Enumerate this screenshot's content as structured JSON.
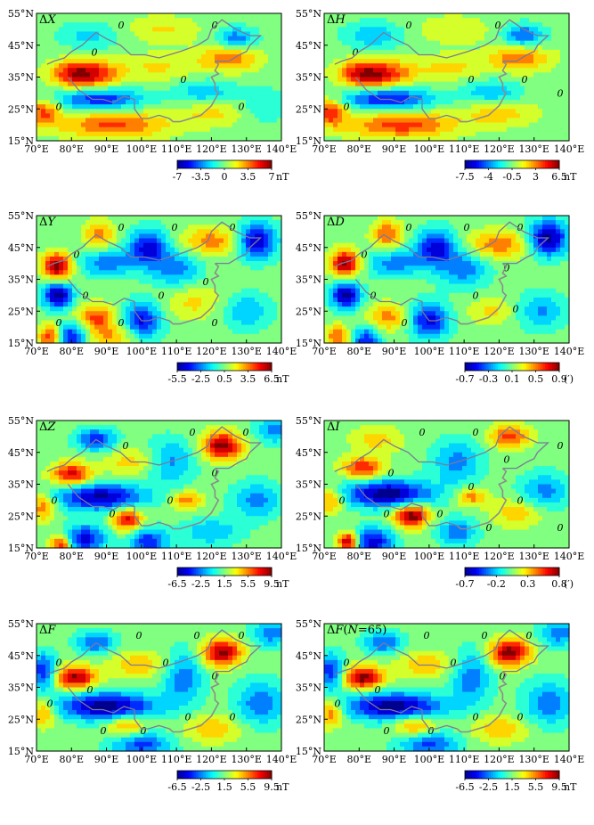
{
  "chart_data": [
    {
      "type": "heatmap",
      "title_prefix": "Δ",
      "title_var": "X",
      "title_suffix": "",
      "x_ticks": [
        "70°E",
        "80°E",
        "90°E",
        "100°E",
        "110°E",
        "120°E",
        "130°E",
        "140°E"
      ],
      "y_ticks": [
        "15°N",
        "25°N",
        "35°N",
        "45°N",
        "55°N"
      ],
      "xlim": [
        70,
        140
      ],
      "ylim": [
        15,
        55
      ],
      "colorbar": {
        "ticks": [
          "-7",
          "-3.5",
          "0",
          "3.5",
          "7"
        ],
        "unit": "nT",
        "range": [
          -7,
          7
        ]
      },
      "field": [
        {
          "x": 81,
          "y": 36,
          "amp": 1.0,
          "sx": 5,
          "sy": 3
        },
        {
          "x": 88,
          "y": 36,
          "amp": 0.6,
          "sx": 5,
          "sy": 3
        },
        {
          "x": 125,
          "y": 41,
          "amp": 0.7,
          "sx": 6,
          "sy": 3
        },
        {
          "x": 105,
          "y": 38,
          "amp": 0.35,
          "sx": 8,
          "sy": 3
        },
        {
          "x": 88,
          "y": 28,
          "amp": -0.9,
          "sx": 9,
          "sy": 2.5
        },
        {
          "x": 92,
          "y": 20,
          "amp": 0.8,
          "sx": 11,
          "sy": 3
        },
        {
          "x": 120,
          "y": 24,
          "amp": 0.4,
          "sx": 7,
          "sy": 3
        },
        {
          "x": 72,
          "y": 24,
          "amp": 0.8,
          "sx": 3,
          "sy": 3
        },
        {
          "x": 118,
          "y": 30,
          "amp": -0.5,
          "sx": 6,
          "sy": 3
        },
        {
          "x": 127,
          "y": 47,
          "amp": -0.7,
          "sx": 4,
          "sy": 2.5
        },
        {
          "x": 85,
          "y": 48,
          "amp": -0.4,
          "sx": 6,
          "sy": 3
        },
        {
          "x": 106,
          "y": 50,
          "amp": 0.35,
          "sx": 7,
          "sy": 3
        },
        {
          "x": 135,
          "y": 26,
          "amp": -0.3,
          "sx": 5,
          "sy": 4
        }
      ]
    },
    {
      "type": "heatmap",
      "title_prefix": "Δ",
      "title_var": "H",
      "title_suffix": "",
      "x_ticks": [
        "70°E",
        "80°E",
        "90°E",
        "100°E",
        "110°E",
        "120°E",
        "130°E",
        "140°E"
      ],
      "y_ticks": [
        "15°N",
        "25°N",
        "35°N",
        "45°N",
        "55°N"
      ],
      "xlim": [
        70,
        140
      ],
      "ylim": [
        15,
        55
      ],
      "colorbar": {
        "ticks": [
          "-7.5",
          "-4",
          "-0.5",
          "3",
          "6.5"
        ],
        "unit": "nT",
        "range": [
          -7.5,
          6.5
        ]
      },
      "field": [
        {
          "x": 81,
          "y": 36,
          "amp": 1.0,
          "sx": 5,
          "sy": 3
        },
        {
          "x": 89,
          "y": 36,
          "amp": 0.6,
          "sx": 5,
          "sy": 3
        },
        {
          "x": 126,
          "y": 41,
          "amp": 0.65,
          "sx": 6,
          "sy": 3
        },
        {
          "x": 106,
          "y": 38,
          "amp": 0.35,
          "sx": 8,
          "sy": 3
        },
        {
          "x": 88,
          "y": 28,
          "amp": -0.95,
          "sx": 9,
          "sy": 2.5
        },
        {
          "x": 92,
          "y": 20,
          "amp": 0.8,
          "sx": 11,
          "sy": 3
        },
        {
          "x": 120,
          "y": 24,
          "amp": 0.45,
          "sx": 7,
          "sy": 3
        },
        {
          "x": 72,
          "y": 24,
          "amp": 0.85,
          "sx": 3,
          "sy": 3
        },
        {
          "x": 118,
          "y": 30,
          "amp": -0.5,
          "sx": 6,
          "sy": 3
        },
        {
          "x": 127,
          "y": 48,
          "amp": -0.75,
          "sx": 4,
          "sy": 2.5
        },
        {
          "x": 84,
          "y": 48,
          "amp": -0.45,
          "sx": 6,
          "sy": 3
        },
        {
          "x": 107,
          "y": 50,
          "amp": 0.3,
          "sx": 7,
          "sy": 3
        }
      ]
    },
    {
      "type": "heatmap",
      "title_prefix": "Δ",
      "title_var": "Y",
      "title_suffix": "",
      "x_ticks": [
        "70°E",
        "80°E",
        "90°E",
        "100°E",
        "110°E",
        "120°E",
        "130°E",
        "140°E"
      ],
      "y_ticks": [
        "15°N",
        "25°N",
        "35°N",
        "45°N",
        "55°N"
      ],
      "xlim": [
        70,
        140
      ],
      "ylim": [
        15,
        55
      ],
      "colorbar": {
        "ticks": [
          "-5.5",
          "-2.5",
          "0.5",
          "3.5",
          "6.5"
        ],
        "unit": "nT",
        "range": [
          -5.5,
          6.5
        ]
      },
      "field": [
        {
          "x": 76,
          "y": 39,
          "amp": 1.0,
          "sx": 3,
          "sy": 3
        },
        {
          "x": 76,
          "y": 30,
          "amp": -1.0,
          "sx": 3,
          "sy": 3
        },
        {
          "x": 74,
          "y": 17,
          "amp": 0.7,
          "sx": 2.5,
          "sy": 2.5
        },
        {
          "x": 80,
          "y": 17,
          "amp": -0.8,
          "sx": 3,
          "sy": 3
        },
        {
          "x": 88,
          "y": 49,
          "amp": 0.5,
          "sx": 3,
          "sy": 3
        },
        {
          "x": 102,
          "y": 45,
          "amp": -0.8,
          "sx": 4,
          "sy": 4
        },
        {
          "x": 120,
          "y": 47,
          "amp": 0.5,
          "sx": 6,
          "sy": 3
        },
        {
          "x": 133,
          "y": 47,
          "amp": -0.9,
          "sx": 4,
          "sy": 4
        },
        {
          "x": 90,
          "y": 40,
          "amp": -0.5,
          "sx": 6,
          "sy": 3
        },
        {
          "x": 110,
          "y": 38,
          "amp": -0.5,
          "sx": 5,
          "sy": 4
        },
        {
          "x": 100,
          "y": 22,
          "amp": -0.8,
          "sx": 4,
          "sy": 4
        },
        {
          "x": 87,
          "y": 23,
          "amp": 0.6,
          "sx": 4,
          "sy": 3
        },
        {
          "x": 92,
          "y": 17,
          "amp": 0.4,
          "sx": 5,
          "sy": 3
        },
        {
          "x": 130,
          "y": 25,
          "amp": -0.4,
          "sx": 5,
          "sy": 4
        },
        {
          "x": 115,
          "y": 28,
          "amp": 0.3,
          "sx": 6,
          "sy": 4
        }
      ]
    },
    {
      "type": "heatmap",
      "title_prefix": "Δ",
      "title_var": "D",
      "title_suffix": "",
      "x_ticks": [
        "70°E",
        "80°E",
        "90°E",
        "100°E",
        "110°E",
        "120°E",
        "130°E",
        "140°E"
      ],
      "y_ticks": [
        "15°N",
        "25°N",
        "35°N",
        "45°N",
        "55°N"
      ],
      "xlim": [
        70,
        140
      ],
      "ylim": [
        15,
        55
      ],
      "colorbar": {
        "ticks": [
          "-0.7",
          "-0.3",
          "0.1",
          "0.5",
          "0.9"
        ],
        "unit": "(′)",
        "range": [
          -0.7,
          0.9
        ]
      },
      "field": [
        {
          "x": 76,
          "y": 40,
          "amp": 1.0,
          "sx": 3,
          "sy": 3
        },
        {
          "x": 76,
          "y": 30,
          "amp": -1.0,
          "sx": 3,
          "sy": 3
        },
        {
          "x": 74,
          "y": 17,
          "amp": 0.6,
          "sx": 2.5,
          "sy": 2.5
        },
        {
          "x": 82,
          "y": 16,
          "amp": -0.7,
          "sx": 3,
          "sy": 3
        },
        {
          "x": 88,
          "y": 49,
          "amp": 0.6,
          "sx": 3,
          "sy": 3
        },
        {
          "x": 102,
          "y": 45,
          "amp": -0.8,
          "sx": 4,
          "sy": 4
        },
        {
          "x": 120,
          "y": 46,
          "amp": 0.55,
          "sx": 6,
          "sy": 3
        },
        {
          "x": 134,
          "y": 48,
          "amp": -1.0,
          "sx": 4,
          "sy": 4
        },
        {
          "x": 90,
          "y": 40,
          "amp": -0.5,
          "sx": 6,
          "sy": 3
        },
        {
          "x": 110,
          "y": 38,
          "amp": -0.5,
          "sx": 5,
          "sy": 4
        },
        {
          "x": 100,
          "y": 22,
          "amp": -0.8,
          "sx": 4,
          "sy": 4
        },
        {
          "x": 88,
          "y": 23,
          "amp": 0.5,
          "sx": 4,
          "sy": 3
        },
        {
          "x": 118,
          "y": 25,
          "amp": 0.3,
          "sx": 5,
          "sy": 3
        },
        {
          "x": 132,
          "y": 25,
          "amp": -0.45,
          "sx": 5,
          "sy": 4
        }
      ]
    },
    {
      "type": "heatmap",
      "title_prefix": "Δ",
      "title_var": "Z",
      "title_suffix": "",
      "x_ticks": [
        "70°E",
        "80°E",
        "90°E",
        "100°E",
        "110°E",
        "120°E",
        "130°E",
        "140°E"
      ],
      "y_ticks": [
        "15°N",
        "25°N",
        "35°N",
        "45°N",
        "55°N"
      ],
      "xlim": [
        70,
        140
      ],
      "ylim": [
        15,
        55
      ],
      "colorbar": {
        "ticks": [
          "-6.5",
          "-2.5",
          "1.5",
          "5.5",
          "9.5"
        ],
        "unit": "nT",
        "range": [
          -6.5,
          9.5
        ]
      },
      "field": [
        {
          "x": 80,
          "y": 38,
          "amp": 0.85,
          "sx": 4,
          "sy": 2.5
        },
        {
          "x": 88,
          "y": 31,
          "amp": -0.95,
          "sx": 9,
          "sy": 3
        },
        {
          "x": 123,
          "y": 47,
          "amp": 1.0,
          "sx": 4,
          "sy": 3
        },
        {
          "x": 96,
          "y": 24,
          "amp": 0.85,
          "sx": 3,
          "sy": 2.5
        },
        {
          "x": 72,
          "y": 28,
          "amp": 0.6,
          "sx": 2.5,
          "sy": 3
        },
        {
          "x": 77,
          "y": 16,
          "amp": 0.8,
          "sx": 2,
          "sy": 2
        },
        {
          "x": 87,
          "y": 49,
          "amp": -0.7,
          "sx": 4,
          "sy": 2.5
        },
        {
          "x": 84,
          "y": 18,
          "amp": -0.8,
          "sx": 4,
          "sy": 3
        },
        {
          "x": 102,
          "y": 17,
          "amp": -0.7,
          "sx": 4,
          "sy": 3
        },
        {
          "x": 113,
          "y": 30,
          "amp": 0.55,
          "sx": 3,
          "sy": 2
        },
        {
          "x": 108,
          "y": 42,
          "amp": -0.5,
          "sx": 5,
          "sy": 5
        },
        {
          "x": 133,
          "y": 30,
          "amp": -0.5,
          "sx": 5,
          "sy": 4
        },
        {
          "x": 98,
          "y": 42,
          "amp": 0.35,
          "sx": 6,
          "sy": 3
        },
        {
          "x": 120,
          "y": 20,
          "amp": -0.4,
          "sx": 6,
          "sy": 3
        },
        {
          "x": 138,
          "y": 52,
          "amp": -0.5,
          "sx": 4,
          "sy": 3
        }
      ]
    },
    {
      "type": "heatmap",
      "title_prefix": "Δ",
      "title_var": "I",
      "title_suffix": "",
      "x_ticks": [
        "70°E",
        "80°E",
        "90°E",
        "100°E",
        "110°E",
        "120°E",
        "130°E",
        "140°E"
      ],
      "y_ticks": [
        "15°N",
        "25°N",
        "35°N",
        "45°N",
        "55°N"
      ],
      "xlim": [
        70,
        140
      ],
      "ylim": [
        15,
        55
      ],
      "colorbar": {
        "ticks": [
          "-0.7",
          "-0.2",
          "0.3",
          "0.8"
        ],
        "unit": "(′)",
        "range": [
          -0.7,
          0.8
        ]
      },
      "field": [
        {
          "x": 81,
          "y": 40,
          "amp": 0.7,
          "sx": 4,
          "sy": 2.5
        },
        {
          "x": 88,
          "y": 32,
          "amp": -0.95,
          "sx": 9,
          "sy": 3
        },
        {
          "x": 123,
          "y": 50,
          "amp": 0.6,
          "sx": 4,
          "sy": 2.5
        },
        {
          "x": 95,
          "y": 25,
          "amp": 1.0,
          "sx": 3.5,
          "sy": 2.5
        },
        {
          "x": 72,
          "y": 30,
          "amp": 0.5,
          "sx": 2.5,
          "sy": 3
        },
        {
          "x": 77,
          "y": 17,
          "amp": 1.0,
          "sx": 2,
          "sy": 2
        },
        {
          "x": 84,
          "y": 17,
          "amp": -0.8,
          "sx": 4,
          "sy": 3
        },
        {
          "x": 108,
          "y": 20,
          "amp": -0.5,
          "sx": 4,
          "sy": 3
        },
        {
          "x": 112,
          "y": 31,
          "amp": 0.5,
          "sx": 3,
          "sy": 2
        },
        {
          "x": 108,
          "y": 42,
          "amp": -0.45,
          "sx": 5,
          "sy": 5
        },
        {
          "x": 133,
          "y": 33,
          "amp": -0.45,
          "sx": 5,
          "sy": 4
        },
        {
          "x": 85,
          "y": 49,
          "amp": 0.3,
          "sx": 5,
          "sy": 3
        },
        {
          "x": 125,
          "y": 26,
          "amp": 0.35,
          "sx": 5,
          "sy": 3
        }
      ]
    },
    {
      "type": "heatmap",
      "title_prefix": "Δ",
      "title_var": "F",
      "title_suffix": "",
      "x_ticks": [
        "70°E",
        "80°E",
        "90°E",
        "100°E",
        "110°E",
        "120°E",
        "130°E",
        "140°E"
      ],
      "y_ticks": [
        "15°N",
        "25°N",
        "35°N",
        "45°N",
        "55°N"
      ],
      "xlim": [
        70,
        140
      ],
      "ylim": [
        15,
        55
      ],
      "colorbar": {
        "ticks": [
          "-6.5",
          "-2.5",
          "1.5",
          "5.5",
          "9.5"
        ],
        "unit": "nT",
        "range": [
          -6.5,
          9.5
        ]
      },
      "field": [
        {
          "x": 81,
          "y": 38,
          "amp": 0.9,
          "sx": 4,
          "sy": 2.5
        },
        {
          "x": 90,
          "y": 29,
          "amp": -0.95,
          "sx": 10,
          "sy": 3
        },
        {
          "x": 123,
          "y": 46,
          "amp": 0.9,
          "sx": 4,
          "sy": 3
        },
        {
          "x": 96,
          "y": 23,
          "amp": 0.5,
          "sx": 4,
          "sy": 2.5
        },
        {
          "x": 72,
          "y": 27,
          "amp": 0.5,
          "sx": 2.5,
          "sy": 3
        },
        {
          "x": 72,
          "y": 40,
          "amp": -0.7,
          "sx": 2.5,
          "sy": 4
        },
        {
          "x": 87,
          "y": 49,
          "amp": -0.55,
          "sx": 4,
          "sy": 2.5
        },
        {
          "x": 100,
          "y": 17,
          "amp": -0.6,
          "sx": 6,
          "sy": 3
        },
        {
          "x": 112,
          "y": 38,
          "amp": -0.5,
          "sx": 4,
          "sy": 6
        },
        {
          "x": 134,
          "y": 30,
          "amp": -0.5,
          "sx": 5,
          "sy": 5
        },
        {
          "x": 99,
          "y": 42,
          "amp": 0.35,
          "sx": 6,
          "sy": 3
        },
        {
          "x": 120,
          "y": 22,
          "amp": 0.35,
          "sx": 6,
          "sy": 3
        },
        {
          "x": 137,
          "y": 52,
          "amp": -0.5,
          "sx": 4,
          "sy": 3
        }
      ]
    },
    {
      "type": "heatmap",
      "title_prefix": "Δ",
      "title_var": "F",
      "title_suffix": "(N=65)",
      "x_ticks": [
        "70°E",
        "80°E",
        "90°E",
        "100°E",
        "110°E",
        "120°E",
        "130°E",
        "140°E"
      ],
      "y_ticks": [
        "15°N",
        "25°N",
        "35°N",
        "45°N",
        "55°N"
      ],
      "xlim": [
        70,
        140
      ],
      "ylim": [
        15,
        55
      ],
      "colorbar": {
        "ticks": [
          "-6.5",
          "-2.5",
          "1.5",
          "5.5",
          "9.5"
        ],
        "unit": "nT",
        "range": [
          -6.5,
          9.5
        ]
      },
      "field": [
        {
          "x": 81,
          "y": 38,
          "amp": 0.95,
          "sx": 4,
          "sy": 2.5
        },
        {
          "x": 90,
          "y": 29,
          "amp": -0.95,
          "sx": 10,
          "sy": 3
        },
        {
          "x": 123,
          "y": 46,
          "amp": 0.95,
          "sx": 4,
          "sy": 3
        },
        {
          "x": 96,
          "y": 23,
          "amp": 0.55,
          "sx": 4,
          "sy": 2.5
        },
        {
          "x": 72,
          "y": 27,
          "amp": 0.55,
          "sx": 2.5,
          "sy": 3
        },
        {
          "x": 72,
          "y": 40,
          "amp": -0.7,
          "sx": 2.5,
          "sy": 4
        },
        {
          "x": 87,
          "y": 49,
          "amp": -0.55,
          "sx": 4,
          "sy": 2.5
        },
        {
          "x": 100,
          "y": 17,
          "amp": -0.6,
          "sx": 6,
          "sy": 3
        },
        {
          "x": 112,
          "y": 38,
          "amp": -0.5,
          "sx": 4,
          "sy": 6
        },
        {
          "x": 134,
          "y": 30,
          "amp": -0.5,
          "sx": 5,
          "sy": 5
        },
        {
          "x": 99,
          "y": 42,
          "amp": 0.35,
          "sx": 6,
          "sy": 3
        },
        {
          "x": 120,
          "y": 22,
          "amp": 0.35,
          "sx": 6,
          "sy": 3
        },
        {
          "x": 137,
          "y": 52,
          "amp": -0.5,
          "sx": 4,
          "sy": 3
        }
      ]
    }
  ],
  "zero_contour_label": "0",
  "colormap": [
    "#00008f",
    "#0000ff",
    "#0080ff",
    "#00ffff",
    "#80ff80",
    "#ffff00",
    "#ff8000",
    "#ff0000",
    "#800000"
  ]
}
